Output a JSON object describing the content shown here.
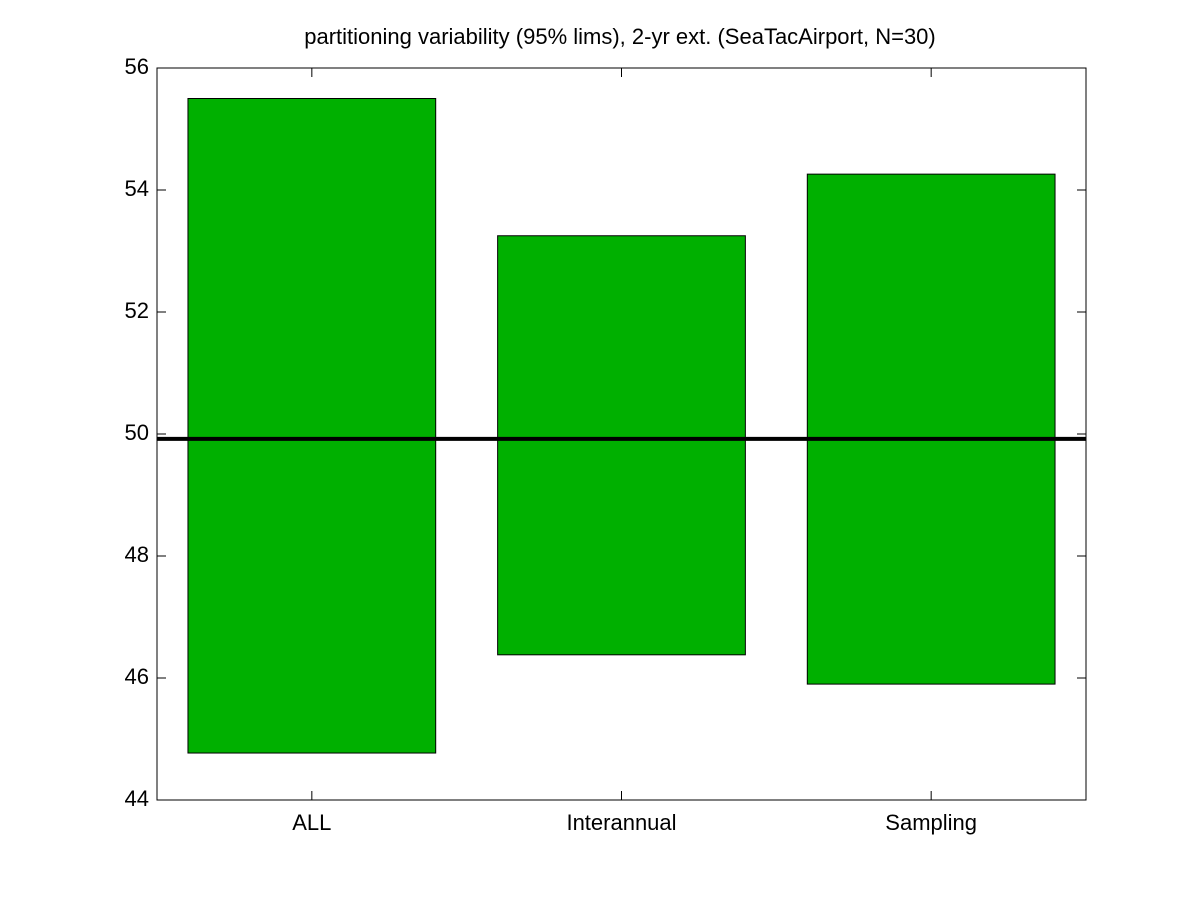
{
  "chart_data": {
    "type": "range",
    "title": "partitioning variability (95% lims), 2-yr ext. (SeaTacAirport, N=30)",
    "categories": [
      "ALL",
      "Interannual",
      "Sampling"
    ],
    "low": [
      44.77,
      46.38,
      45.9
    ],
    "high": [
      55.5,
      53.25,
      54.26
    ],
    "color": "#00b000",
    "hline": 49.92,
    "hline_color": "#000000",
    "ylim": [
      44,
      56
    ],
    "yticks": [
      44,
      46,
      48,
      50,
      52,
      54,
      56
    ],
    "grid": false
  }
}
